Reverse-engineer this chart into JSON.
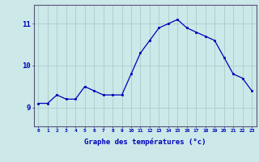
{
  "hours": [
    0,
    1,
    2,
    3,
    4,
    5,
    6,
    7,
    8,
    9,
    10,
    11,
    12,
    13,
    14,
    15,
    16,
    17,
    18,
    19,
    20,
    21,
    22,
    23
  ],
  "temps": [
    9.1,
    9.1,
    9.3,
    9.2,
    9.2,
    9.5,
    9.4,
    9.3,
    9.3,
    9.3,
    9.8,
    10.3,
    10.6,
    10.9,
    11.0,
    11.1,
    10.9,
    10.8,
    10.7,
    10.6,
    10.2,
    9.8,
    9.7,
    9.4
  ],
  "xlabel": "Graphe des températures (°c)",
  "yticks": [
    9,
    10,
    11
  ],
  "ylim": [
    8.55,
    11.45
  ],
  "xlim": [
    -0.5,
    23.5
  ],
  "line_color": "#0000bb",
  "marker_color": "#0000bb",
  "bg_color": "#cce8e8",
  "grid_color": "#aacccc",
  "axis_color": "#555577",
  "tick_color": "#0000bb",
  "label_color": "#0000bb",
  "figsize": [
    3.2,
    2.0
  ],
  "dpi": 100
}
